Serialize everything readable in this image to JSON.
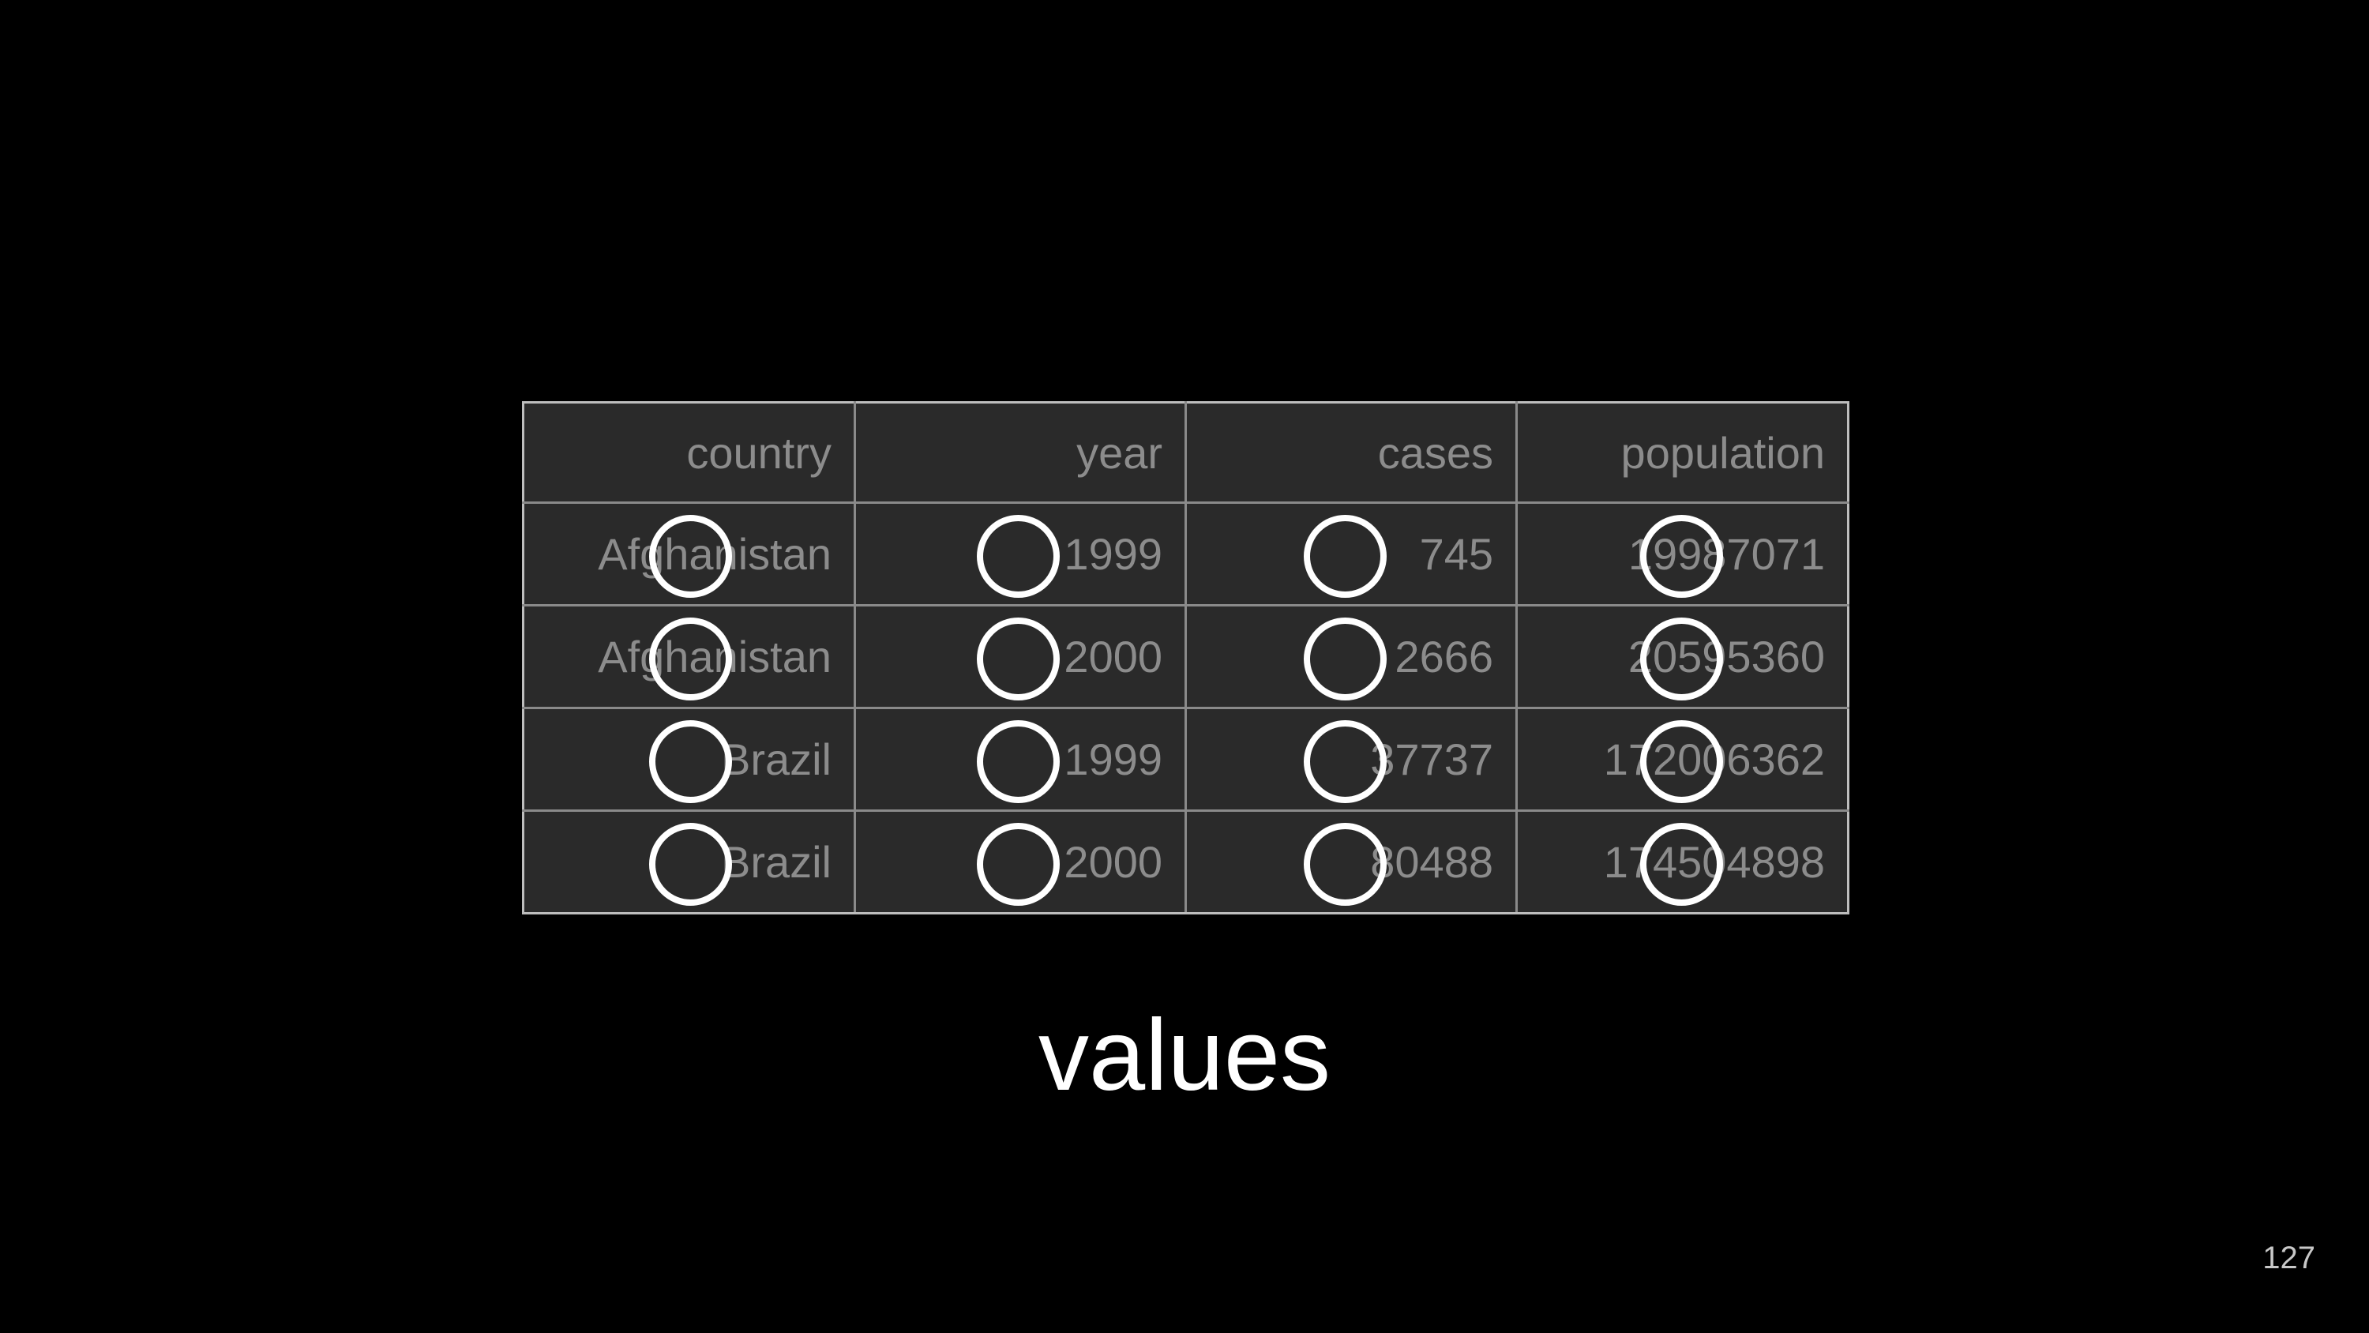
{
  "table": {
    "columns": [
      "country",
      "year",
      "cases",
      "population"
    ],
    "rows": [
      [
        "Afghanistan",
        "1999",
        "745",
        "19987071"
      ],
      [
        "Afghanistan",
        "2000",
        "2666",
        "20595360"
      ],
      [
        "Brazil",
        "1999",
        "37737",
        "172006362"
      ],
      [
        "Brazil",
        "2000",
        "80488",
        "174504898"
      ]
    ]
  },
  "caption": "values",
  "page_number": "127"
}
